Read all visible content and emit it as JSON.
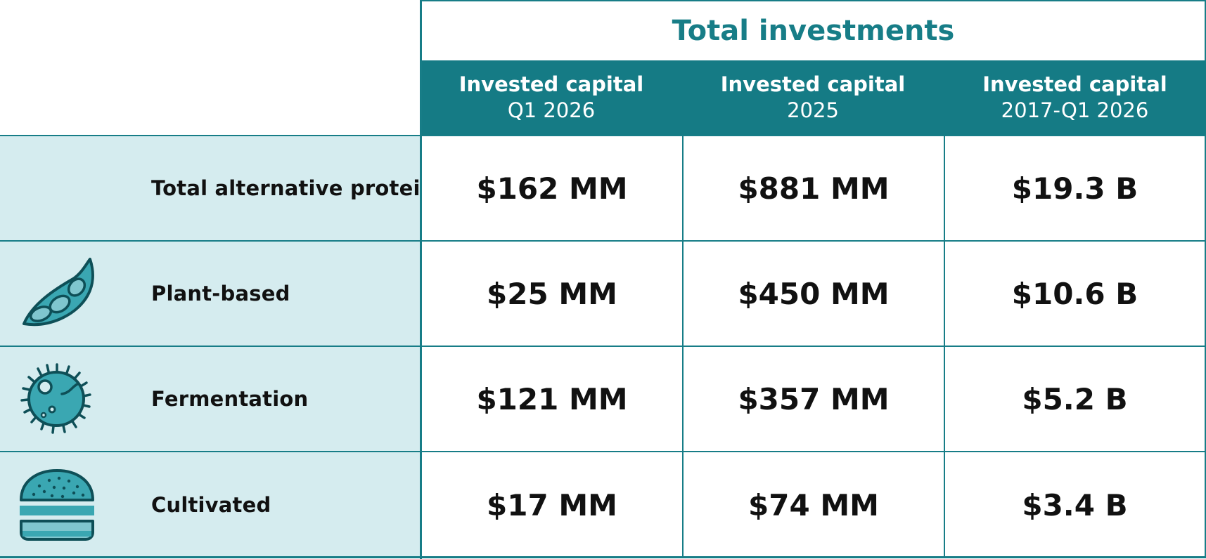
{
  "table": {
    "group_header": "Total investments",
    "columns": [
      {
        "line1": "Invested capital",
        "line2": "Q1 2026"
      },
      {
        "line1": "Invested capital",
        "line2": "2025"
      },
      {
        "line1": "Invested capital",
        "line2": "2017-Q1 2026"
      }
    ],
    "rows": [
      {
        "label": "Total alternative protein",
        "icon": "",
        "values": [
          "$162 MM",
          "$881 MM",
          "$19.3 B"
        ]
      },
      {
        "label": "Plant-based",
        "icon": "soybean-pod-icon",
        "values": [
          "$25 MM",
          "$450 MM",
          "$10.6 B"
        ]
      },
      {
        "label": "Fermentation",
        "icon": "microbe-cell-icon",
        "values": [
          "$121 MM",
          "$357 MM",
          "$5.2 B"
        ]
      },
      {
        "label": "Cultivated",
        "icon": "burger-icon",
        "values": [
          "$17 MM",
          "$74 MM",
          "$3.4 B"
        ]
      }
    ]
  },
  "colors": {
    "teal_dark": "#157b85",
    "teal_title": "#177d87",
    "row_label_bg": "#d5ecef",
    "icon_fill": "#3aa7b2"
  }
}
